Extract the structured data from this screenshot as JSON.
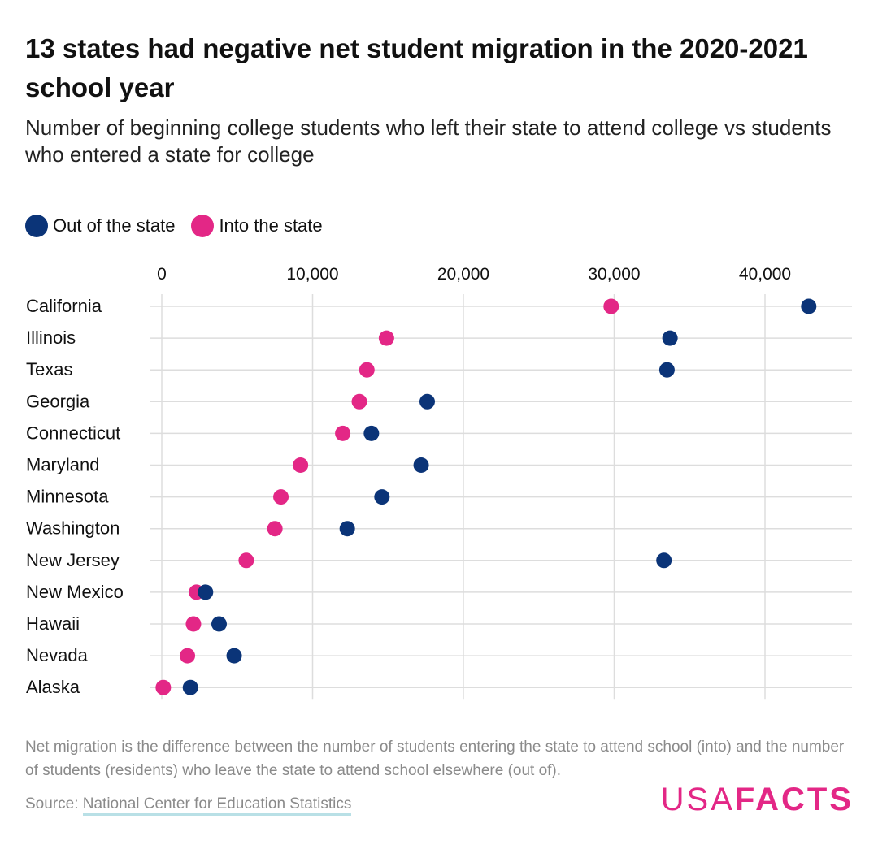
{
  "title": "13 states had negative net student migration in the 2020-2021 school year",
  "subtitle": "Number of beginning college students who left their state to attend college vs students who entered a state for college",
  "legend": {
    "out_label": "Out of the state",
    "into_label": "Into the state"
  },
  "colors": {
    "out": "#0b3478",
    "into": "#e32786",
    "grid": "#dddddd",
    "brand": "#e32786"
  },
  "chart_data": {
    "type": "scatter",
    "orientation": "horizontal dot plot",
    "categories": [
      "California",
      "Illinois",
      "Texas",
      "Georgia",
      "Connecticut",
      "Maryland",
      "Minnesota",
      "Washington",
      "New Jersey",
      "New Mexico",
      "Hawaii",
      "Nevada",
      "Alaska"
    ],
    "series": [
      {
        "name": "Out of the state",
        "values": [
          42900,
          33700,
          33500,
          17600,
          13900,
          17200,
          14600,
          12300,
          33300,
          2900,
          3800,
          4800,
          1900
        ]
      },
      {
        "name": "Into the state",
        "values": [
          29800,
          14900,
          13600,
          13100,
          12000,
          9200,
          7900,
          7500,
          5600,
          2300,
          2100,
          1700,
          100
        ]
      }
    ],
    "xlim": [
      0,
      45000
    ],
    "xticks": [
      0,
      10000,
      20000,
      30000,
      40000
    ],
    "xtick_labels": [
      "0",
      "10,000",
      "20,000",
      "30,000",
      "40,000"
    ],
    "grid": true,
    "legend_position": "top-left"
  },
  "footnote": "Net migration is the difference between the number of students entering the state to attend school (into) and the number of students (residents) who leave the state to attend school elsewhere (out of).",
  "source": {
    "prefix": "Source: ",
    "link_text": "National Center for Education Statistics"
  },
  "logo": {
    "light": "USA",
    "bold": "FACTS"
  }
}
